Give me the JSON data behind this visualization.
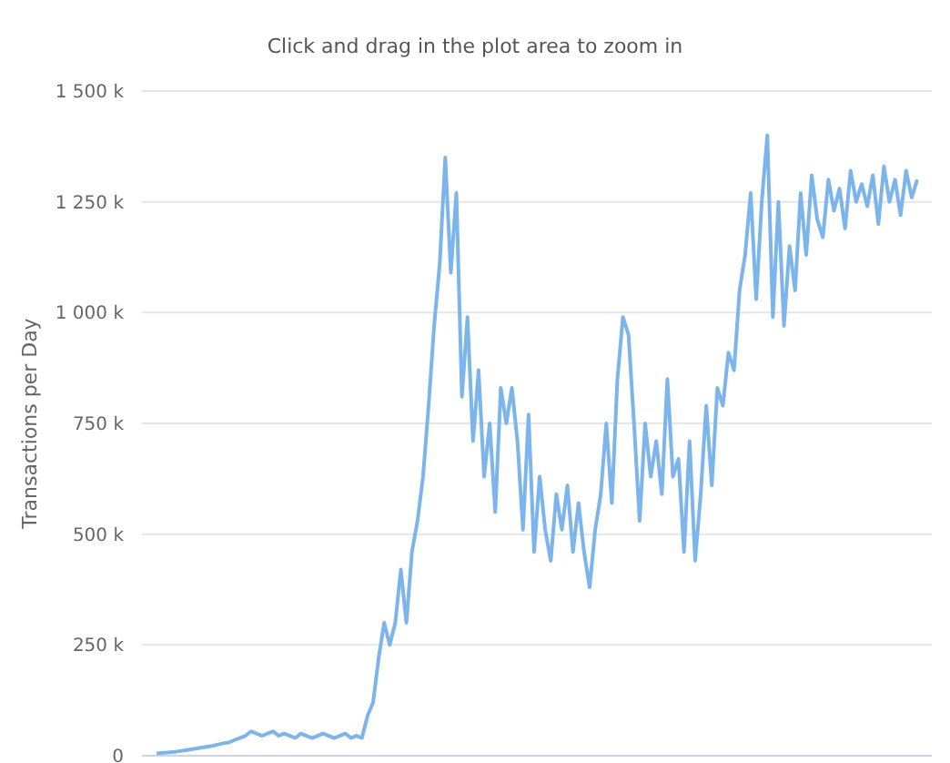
{
  "chart_data": {
    "type": "line",
    "subtitle": "Click and drag in the plot area to zoom in",
    "ylabel": "Transactions per Day",
    "grid": "y",
    "marker": "none",
    "ylim": [
      0,
      1500
    ],
    "yticks": [
      {
        "value": 0,
        "label": "0"
      },
      {
        "value": 250,
        "label": "250 k"
      },
      {
        "value": 500,
        "label": "500 k"
      },
      {
        "value": 750,
        "label": "750 k"
      },
      {
        "value": 1000,
        "label": "1 000 k"
      },
      {
        "value": 1250,
        "label": "1 250 k"
      },
      {
        "value": 1500,
        "label": "1 500 k"
      }
    ],
    "categories": [
      null,
      null,
      null,
      null,
      null,
      null,
      null,
      null,
      null,
      null,
      null,
      null,
      null,
      null,
      null,
      null,
      null,
      null,
      null,
      null,
      null,
      null,
      null,
      null,
      null,
      null,
      null,
      null,
      null,
      null,
      null,
      null,
      null,
      null,
      null,
      null,
      null,
      null,
      null,
      null,
      null,
      null,
      null,
      null,
      null,
      null,
      null,
      null,
      null,
      null,
      null,
      null,
      null,
      null,
      null,
      null,
      null,
      null,
      null,
      null,
      null,
      null,
      null,
      null,
      null,
      null,
      null,
      null,
      null,
      null,
      null,
      null,
      null,
      null,
      null,
      null,
      null,
      null,
      null,
      null,
      null,
      null,
      null,
      null,
      null,
      null,
      null,
      null,
      null,
      null,
      null,
      null,
      null,
      null,
      null,
      null,
      null,
      null,
      null,
      null,
      null,
      null,
      null,
      null,
      null,
      null,
      null,
      null,
      null,
      null,
      null,
      null,
      null,
      null,
      null,
      null,
      null,
      null,
      null,
      null,
      null,
      null,
      null,
      null,
      null,
      null,
      null,
      null,
      null,
      null,
      null,
      null,
      null,
      null,
      null,
      null,
      null,
      null
    ],
    "series": [
      {
        "color": "#7cb5ec",
        "values": [
          5,
          6,
          7,
          8,
          10,
          12,
          14,
          16,
          18,
          20,
          22,
          25,
          28,
          30,
          35,
          40,
          45,
          55,
          50,
          45,
          50,
          55,
          45,
          50,
          45,
          40,
          50,
          45,
          40,
          45,
          50,
          45,
          40,
          45,
          50,
          40,
          45,
          40,
          90,
          120,
          220,
          300,
          250,
          300,
          420,
          300,
          460,
          530,
          630,
          790,
          970,
          1110,
          1350,
          1090,
          1270,
          810,
          990,
          710,
          870,
          630,
          750,
          550,
          830,
          750,
          830,
          710,
          510,
          770,
          460,
          630,
          510,
          440,
          590,
          510,
          610,
          460,
          570,
          460,
          380,
          510,
          590,
          750,
          570,
          850,
          990,
          950,
          750,
          530,
          750,
          630,
          710,
          590,
          850,
          630,
          670,
          460,
          710,
          440,
          590,
          790,
          610,
          830,
          790,
          910,
          870,
          1050,
          1130,
          1270,
          1030,
          1250,
          1400,
          990,
          1250,
          970,
          1150,
          1050,
          1270,
          1130,
          1310,
          1210,
          1170,
          1300,
          1230,
          1280,
          1190,
          1320,
          1250,
          1290,
          1240,
          1310,
          1200,
          1330,
          1250,
          1300,
          1220,
          1320,
          1260,
          1300
        ]
      }
    ]
  }
}
